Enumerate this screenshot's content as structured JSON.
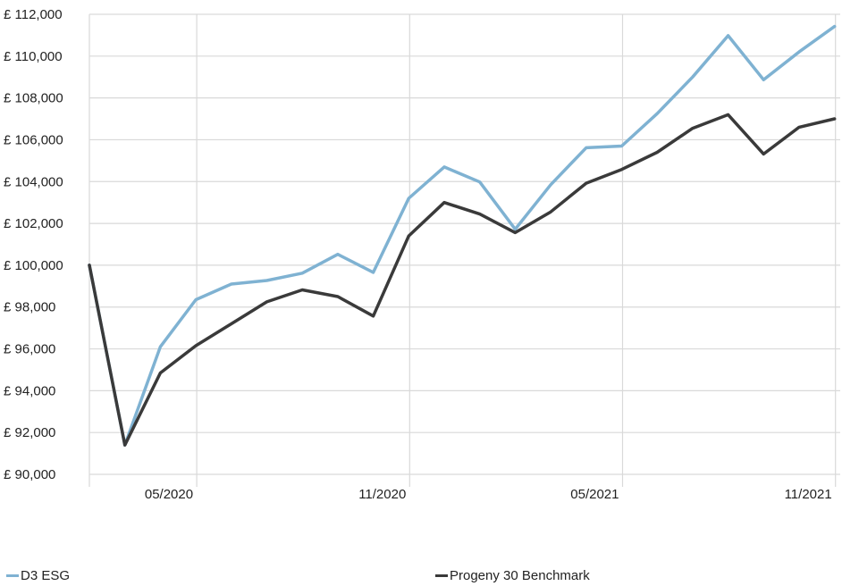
{
  "chart_data": {
    "type": "line",
    "title": "",
    "xlabel": "",
    "ylabel": "",
    "y_prefix": "£ ",
    "ylim": [
      90000,
      112000
    ],
    "y_ticks": [
      90000,
      92000,
      94000,
      96000,
      98000,
      100000,
      102000,
      104000,
      106000,
      108000,
      110000,
      112000
    ],
    "y_tick_labels": [
      "£ 90,000",
      "£ 92,000",
      "£ 94,000",
      "£ 96,000",
      "£ 98,000",
      "£ 100,000",
      "£ 102,000",
      "£ 104,000",
      "£ 106,000",
      "£ 108,000",
      "£ 110,000",
      "£ 112,000"
    ],
    "x": [
      "2020-02",
      "2020-03",
      "2020-04",
      "2020-05",
      "2020-06",
      "2020-07",
      "2020-08",
      "2020-09",
      "2020-10",
      "2020-11",
      "2020-12",
      "2021-01",
      "2021-02",
      "2021-03",
      "2021-04",
      "2021-05",
      "2021-06",
      "2021-07",
      "2021-08",
      "2021-09",
      "2021-10",
      "2021-11"
    ],
    "x_ticks": [
      "2020-05",
      "2020-11",
      "2021-05",
      "2021-11"
    ],
    "x_tick_labels": [
      "05/2020",
      "11/2020",
      "05/2021",
      "11/2021"
    ],
    "grid": true,
    "legend_position": "bottom",
    "series": [
      {
        "name": "D3 ESG",
        "color": "#7fb2d2",
        "values": [
          100000,
          91400,
          96100,
          98350,
          99100,
          99270,
          99620,
          100520,
          99660,
          103200,
          104700,
          103980,
          101720,
          103850,
          105620,
          105700,
          107250,
          109000,
          110980,
          108870,
          110200,
          111420
        ]
      },
      {
        "name": "Progeny 30 Benchmark",
        "color": "#3a3a3a",
        "values": [
          100000,
          91400,
          94850,
          96150,
          97200,
          98250,
          98820,
          98500,
          97570,
          101400,
          103000,
          102450,
          101560,
          102550,
          103920,
          104580,
          105400,
          106550,
          107200,
          105320,
          106600,
          107000
        ]
      }
    ]
  }
}
